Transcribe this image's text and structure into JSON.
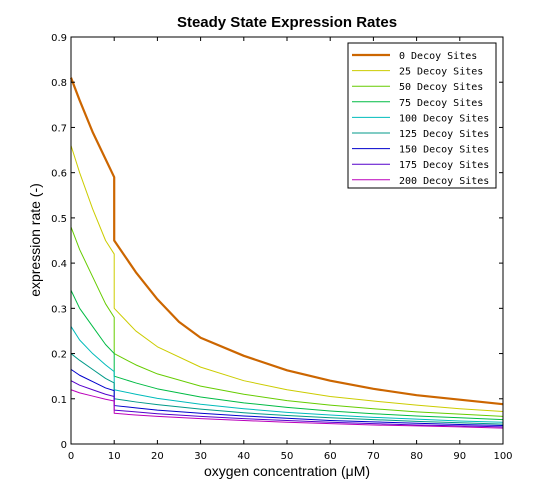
{
  "chart_data": {
    "type": "line",
    "title": "Steady State Expression Rates",
    "xlabel": "oxygen concentration (μM)",
    "ylabel": "expression rate (-)",
    "xlim": [
      0,
      100
    ],
    "ylim": [
      0,
      0.9
    ],
    "xticks": [
      0,
      10,
      20,
      30,
      40,
      50,
      60,
      70,
      80,
      90,
      100
    ],
    "yticks": [
      0,
      0.1,
      0.2,
      0.3,
      0.4,
      0.5,
      0.6,
      0.7,
      0.8,
      0.9
    ],
    "xtick_labels": [
      "0",
      "10",
      "20",
      "30",
      "40",
      "50",
      "60",
      "70",
      "80",
      "90",
      "100"
    ],
    "ytick_labels": [
      "0",
      "0.1",
      "0.2",
      "0.3",
      "0.4",
      "0.5",
      "0.6",
      "0.7",
      "0.8",
      "0.9"
    ],
    "grid": false,
    "legend_position": "top-right",
    "series": [
      {
        "name": "0 Decoy Sites",
        "color": "#cc6600",
        "thick": true,
        "points": [
          [
            0,
            0.81
          ],
          [
            2,
            0.76
          ],
          [
            5,
            0.69
          ],
          [
            8,
            0.63
          ],
          [
            10,
            0.59
          ],
          [
            10,
            0.45
          ],
          [
            15,
            0.38
          ],
          [
            20,
            0.32
          ],
          [
            25,
            0.27
          ],
          [
            30,
            0.235
          ],
          [
            40,
            0.195
          ],
          [
            50,
            0.163
          ],
          [
            60,
            0.14
          ],
          [
            70,
            0.122
          ],
          [
            80,
            0.108
          ],
          [
            90,
            0.098
          ],
          [
            100,
            0.088
          ]
        ]
      },
      {
        "name": "25 Decoy Sites",
        "color": "#cccc00",
        "points": [
          [
            0,
            0.66
          ],
          [
            2,
            0.6
          ],
          [
            5,
            0.52
          ],
          [
            8,
            0.45
          ],
          [
            10,
            0.42
          ],
          [
            10,
            0.3
          ],
          [
            15,
            0.25
          ],
          [
            20,
            0.215
          ],
          [
            30,
            0.17
          ],
          [
            40,
            0.14
          ],
          [
            50,
            0.12
          ],
          [
            60,
            0.105
          ],
          [
            70,
            0.095
          ],
          [
            80,
            0.086
          ],
          [
            90,
            0.078
          ],
          [
            100,
            0.072
          ]
        ]
      },
      {
        "name": "50 Decoy Sites",
        "color": "#66cc00",
        "points": [
          [
            0,
            0.48
          ],
          [
            2,
            0.43
          ],
          [
            5,
            0.37
          ],
          [
            8,
            0.31
          ],
          [
            10,
            0.28
          ],
          [
            10,
            0.2
          ],
          [
            15,
            0.175
          ],
          [
            20,
            0.155
          ],
          [
            30,
            0.128
          ],
          [
            40,
            0.11
          ],
          [
            50,
            0.096
          ],
          [
            60,
            0.086
          ],
          [
            70,
            0.078
          ],
          [
            80,
            0.071
          ],
          [
            90,
            0.066
          ],
          [
            100,
            0.061
          ]
        ]
      },
      {
        "name": "75 Decoy Sites",
        "color": "#00bb44",
        "points": [
          [
            0,
            0.34
          ],
          [
            2,
            0.3
          ],
          [
            5,
            0.26
          ],
          [
            8,
            0.22
          ],
          [
            10,
            0.2
          ],
          [
            10,
            0.15
          ],
          [
            15,
            0.135
          ],
          [
            20,
            0.122
          ],
          [
            30,
            0.104
          ],
          [
            40,
            0.091
          ],
          [
            50,
            0.081
          ],
          [
            60,
            0.073
          ],
          [
            70,
            0.067
          ],
          [
            80,
            0.062
          ],
          [
            90,
            0.058
          ],
          [
            100,
            0.054
          ]
        ]
      },
      {
        "name": "100 Decoy Sites",
        "color": "#00bbbb",
        "points": [
          [
            0,
            0.26
          ],
          [
            2,
            0.23
          ],
          [
            5,
            0.2
          ],
          [
            8,
            0.175
          ],
          [
            10,
            0.16
          ],
          [
            10,
            0.12
          ],
          [
            15,
            0.11
          ],
          [
            20,
            0.101
          ],
          [
            30,
            0.088
          ],
          [
            40,
            0.078
          ],
          [
            50,
            0.07
          ],
          [
            60,
            0.064
          ],
          [
            70,
            0.059
          ],
          [
            80,
            0.055
          ],
          [
            90,
            0.051
          ],
          [
            100,
            0.048
          ]
        ]
      },
      {
        "name": "125 Decoy Sites",
        "color": "#009988",
        "points": [
          [
            0,
            0.2
          ],
          [
            2,
            0.185
          ],
          [
            5,
            0.165
          ],
          [
            8,
            0.145
          ],
          [
            10,
            0.135
          ],
          [
            10,
            0.1
          ],
          [
            15,
            0.093
          ],
          [
            20,
            0.087
          ],
          [
            30,
            0.077
          ],
          [
            40,
            0.069
          ],
          [
            50,
            0.063
          ],
          [
            60,
            0.058
          ],
          [
            70,
            0.054
          ],
          [
            80,
            0.05
          ],
          [
            90,
            0.047
          ],
          [
            100,
            0.044
          ]
        ]
      },
      {
        "name": "150 Decoy Sites",
        "color": "#0000cc",
        "points": [
          [
            0,
            0.165
          ],
          [
            2,
            0.152
          ],
          [
            5,
            0.138
          ],
          [
            8,
            0.124
          ],
          [
            10,
            0.118
          ],
          [
            10,
            0.085
          ],
          [
            15,
            0.08
          ],
          [
            20,
            0.075
          ],
          [
            30,
            0.068
          ],
          [
            40,
            0.062
          ],
          [
            50,
            0.057
          ],
          [
            60,
            0.052
          ],
          [
            70,
            0.049
          ],
          [
            80,
            0.046
          ],
          [
            90,
            0.043
          ],
          [
            100,
            0.041
          ]
        ]
      },
      {
        "name": "175 Decoy Sites",
        "color": "#5500cc",
        "points": [
          [
            0,
            0.14
          ],
          [
            2,
            0.13
          ],
          [
            5,
            0.12
          ],
          [
            8,
            0.11
          ],
          [
            10,
            0.105
          ],
          [
            10,
            0.075
          ],
          [
            15,
            0.071
          ],
          [
            20,
            0.067
          ],
          [
            30,
            0.061
          ],
          [
            40,
            0.056
          ],
          [
            50,
            0.052
          ],
          [
            60,
            0.048
          ],
          [
            70,
            0.045
          ],
          [
            80,
            0.042
          ],
          [
            90,
            0.04
          ],
          [
            100,
            0.038
          ]
        ]
      },
      {
        "name": "200 Decoy Sites",
        "color": "#bb00bb",
        "points": [
          [
            0,
            0.12
          ],
          [
            2,
            0.113
          ],
          [
            5,
            0.106
          ],
          [
            8,
            0.099
          ],
          [
            10,
            0.095
          ],
          [
            10,
            0.068
          ],
          [
            15,
            0.064
          ],
          [
            20,
            0.061
          ],
          [
            30,
            0.056
          ],
          [
            40,
            0.052
          ],
          [
            50,
            0.048
          ],
          [
            60,
            0.045
          ],
          [
            70,
            0.042
          ],
          [
            80,
            0.04
          ],
          [
            90,
            0.038
          ],
          [
            100,
            0.035
          ]
        ]
      }
    ]
  }
}
